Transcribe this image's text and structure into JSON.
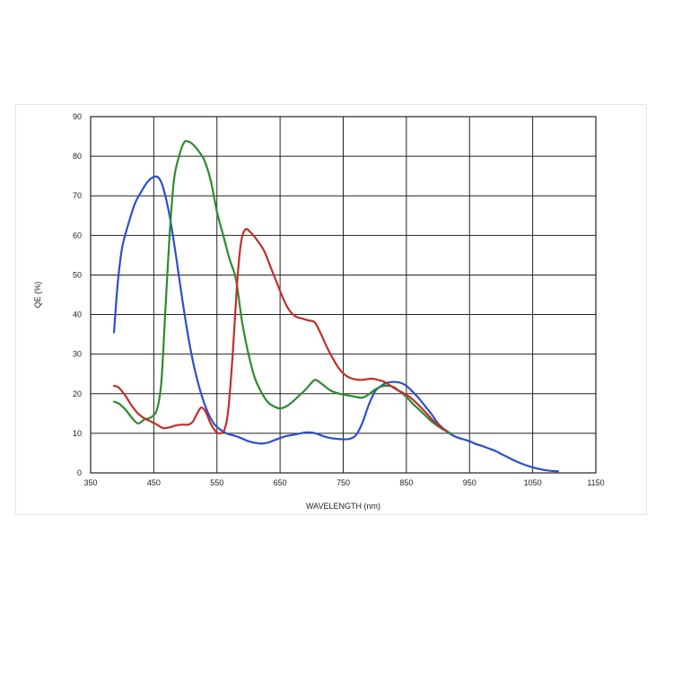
{
  "chart_data": {
    "type": "line",
    "title": "",
    "xlabel": "WAVELENGTH (nm)",
    "ylabel": "QE (%)",
    "xlim": [
      350,
      1150
    ],
    "ylim": [
      0,
      90
    ],
    "xticks": [
      350,
      450,
      550,
      650,
      750,
      850,
      950,
      1050,
      1150
    ],
    "yticks": [
      0,
      10,
      20,
      30,
      40,
      50,
      60,
      70,
      80,
      90
    ],
    "grid": true,
    "legend": "none",
    "series": [
      {
        "color": "#2a4fcf",
        "x": [
          387,
          393,
          400,
          410,
          420,
          430,
          440,
          450,
          458,
          465,
          475,
          485,
          495,
          505,
          515,
          525,
          535,
          545,
          555,
          565,
          575,
          585,
          600,
          610,
          620,
          630,
          640,
          650,
          660,
          670,
          680,
          690,
          700,
          710,
          720,
          730,
          740,
          750,
          760,
          770,
          780,
          790,
          800,
          810,
          820,
          830,
          840,
          850,
          860,
          870,
          880,
          890,
          900,
          910,
          920,
          930,
          940,
          950,
          960,
          970,
          980,
          990,
          1000,
          1010,
          1020,
          1030,
          1040,
          1050,
          1060,
          1070,
          1080,
          1090
        ],
        "values": [
          35.5,
          48,
          57,
          63,
          68,
          71,
          73.5,
          74.8,
          74.5,
          72,
          65,
          55,
          44,
          34,
          26,
          20,
          15.5,
          12.5,
          11,
          10,
          9.5,
          9,
          8,
          7.6,
          7.4,
          7.6,
          8.2,
          8.8,
          9.3,
          9.6,
          9.9,
          10.2,
          10.2,
          9.8,
          9.2,
          8.8,
          8.6,
          8.5,
          8.6,
          9.5,
          12.5,
          17,
          20.5,
          22,
          22.8,
          23,
          22.8,
          22,
          20.5,
          18.8,
          16.8,
          14.8,
          12.5,
          11,
          9.8,
          9,
          8.5,
          8,
          7.3,
          6.8,
          6.2,
          5.6,
          4.8,
          4,
          3.2,
          2.5,
          1.9,
          1.4,
          1.0,
          0.7,
          0.5,
          0.4
        ]
      },
      {
        "color": "#2e8b2e",
        "x": [
          387,
          395,
          405,
          415,
          425,
          435,
          445,
          455,
          462,
          468,
          475,
          482,
          490,
          498,
          505,
          512,
          520,
          530,
          540,
          550,
          560,
          570,
          580,
          590,
          600,
          610,
          620,
          630,
          640,
          650,
          660,
          670,
          680,
          690,
          700,
          705,
          710,
          720,
          730,
          740,
          750,
          760,
          770,
          780,
          790,
          800,
          810,
          820,
          830,
          840,
          850,
          860,
          870,
          880,
          890,
          900,
          910,
          920
        ],
        "values": [
          18,
          17.5,
          16,
          14,
          12.5,
          13.5,
          14,
          16,
          23,
          40,
          60,
          74,
          80,
          83.5,
          83.7,
          83,
          81.5,
          79,
          74,
          66,
          60,
          54,
          49,
          38,
          30,
          24,
          20.5,
          18,
          16.8,
          16.3,
          16.8,
          18,
          19.5,
          21,
          22.8,
          23.5,
          23.2,
          22,
          20.8,
          20.2,
          19.8,
          19.5,
          19.2,
          19,
          19.8,
          21,
          21.8,
          22,
          21.7,
          20.5,
          19.2,
          17.5,
          16,
          14.5,
          13,
          11.8,
          10.8,
          10
        ]
      },
      {
        "color": "#c0302a",
        "x": [
          387,
          395,
          405,
          415,
          425,
          435,
          445,
          455,
          465,
          475,
          485,
          495,
          505,
          512,
          518,
          525,
          532,
          540,
          548,
          555,
          562,
          568,
          575,
          582,
          588,
          595,
          605,
          615,
          625,
          635,
          645,
          655,
          665,
          675,
          685,
          695,
          705,
          715,
          725,
          735,
          745,
          755,
          765,
          775,
          785,
          795,
          805,
          815,
          825,
          835,
          845,
          855,
          865,
          875,
          885,
          895,
          905,
          915
        ],
        "values": [
          22,
          21.5,
          19.5,
          17,
          15,
          13.8,
          13,
          12.2,
          11.3,
          11.5,
          12,
          12.2,
          12.2,
          13,
          14.8,
          16.5,
          15.5,
          12.5,
          10.5,
          10,
          11,
          16,
          30,
          48,
          58,
          61.5,
          60.5,
          58.5,
          56,
          52,
          48,
          44,
          41,
          39.5,
          39,
          38.5,
          38,
          35,
          31.5,
          28.5,
          26,
          24.5,
          23.8,
          23.5,
          23.6,
          23.8,
          23.5,
          23,
          22,
          21,
          20.2,
          19.2,
          17.8,
          16.2,
          14.5,
          12.8,
          11.5,
          10.5
        ]
      }
    ]
  }
}
